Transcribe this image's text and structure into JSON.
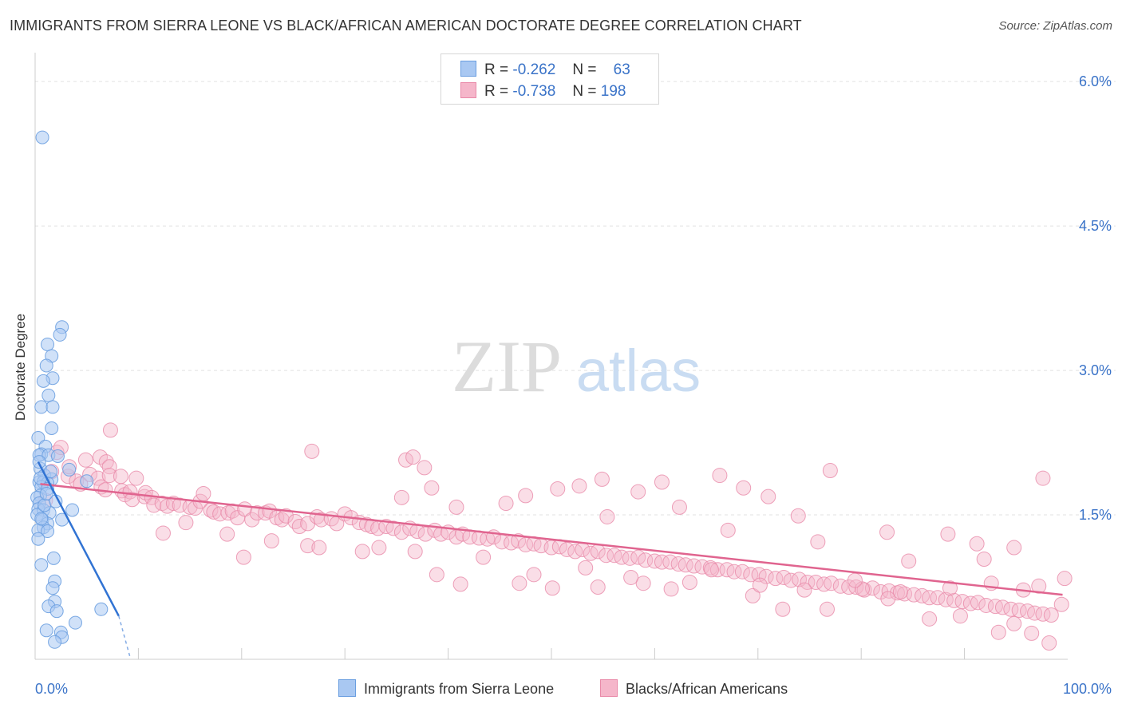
{
  "title": "IMMIGRANTS FROM SIERRA LEONE VS BLACK/AFRICAN AMERICAN DOCTORATE DEGREE CORRELATION CHART",
  "source": "Source: ZipAtlas.com",
  "watermark": {
    "zip": "ZIP",
    "atlas": "atlas"
  },
  "legend_top": {
    "r_label": "R =",
    "n_label": "N =",
    "series1": {
      "r": "-0.262",
      "n": "63"
    },
    "series2": {
      "r": "-0.738",
      "n": "198"
    }
  },
  "colors": {
    "blue_fill": "#a9c8f2",
    "blue_stroke": "#6a9ee0",
    "blue_line": "#3173d3",
    "pink_fill": "#f5b6ca",
    "pink_stroke": "#e98aa9",
    "pink_line": "#e0648f",
    "tick_label": "#3a73c8"
  },
  "chart_data": {
    "type": "scatter",
    "title": "IMMIGRANTS FROM SIERRA LEONE VS BLACK/AFRICAN AMERICAN DOCTORATE DEGREE CORRELATION CHART",
    "xlabel": "",
    "ylabel": "Doctorate Degree",
    "xlim": [
      0,
      100
    ],
    "ylim": [
      0,
      6.2
    ],
    "x_tick_labels": [
      "0.0%",
      "100.0%"
    ],
    "y_ticks": [
      1.5,
      3.0,
      4.5,
      6.0
    ],
    "y_tick_labels": [
      "1.5%",
      "3.0%",
      "4.5%",
      "6.0%"
    ],
    "grid": true,
    "series": [
      {
        "name": "Immigrants from Sierra Leone",
        "trend": {
          "x0": 0.3,
          "y0": 2.05,
          "x1": 8.1,
          "y1": 0.45,
          "dash_to_x": 9.2,
          "dash_to_y": 0.02
        },
        "points": [
          [
            0.7,
            5.42
          ],
          [
            2.6,
            3.45
          ],
          [
            1.2,
            3.27
          ],
          [
            2.4,
            3.37
          ],
          [
            1.6,
            3.15
          ],
          [
            1.1,
            3.05
          ],
          [
            1.7,
            2.92
          ],
          [
            0.8,
            2.89
          ],
          [
            1.3,
            2.74
          ],
          [
            0.6,
            2.62
          ],
          [
            1.7,
            2.62
          ],
          [
            1.6,
            2.4
          ],
          [
            0.3,
            2.3
          ],
          [
            1.0,
            2.21
          ],
          [
            0.6,
            2.13
          ],
          [
            0.4,
            2.12
          ],
          [
            1.3,
            2.12
          ],
          [
            2.2,
            2.11
          ],
          [
            0.5,
            1.98
          ],
          [
            3.3,
            1.97
          ],
          [
            0.9,
            1.91
          ],
          [
            1.6,
            1.87
          ],
          [
            0.4,
            1.84
          ],
          [
            0.8,
            1.84
          ],
          [
            1.2,
            1.83
          ],
          [
            5.0,
            1.85
          ],
          [
            0.6,
            1.79
          ],
          [
            1.2,
            1.77
          ],
          [
            0.5,
            1.7
          ],
          [
            0.2,
            1.68
          ],
          [
            0.4,
            1.62
          ],
          [
            0.3,
            1.56
          ],
          [
            3.6,
            1.55
          ],
          [
            0.8,
            1.55
          ],
          [
            1.4,
            1.52
          ],
          [
            0.2,
            1.5
          ],
          [
            0.7,
            1.45
          ],
          [
            2.6,
            1.45
          ],
          [
            1.2,
            1.41
          ],
          [
            0.8,
            1.37
          ],
          [
            0.3,
            1.34
          ],
          [
            1.2,
            1.33
          ],
          [
            0.3,
            1.25
          ],
          [
            1.8,
            1.05
          ],
          [
            0.6,
            0.98
          ],
          [
            1.9,
            0.81
          ],
          [
            1.7,
            0.74
          ],
          [
            1.9,
            0.6
          ],
          [
            1.3,
            0.55
          ],
          [
            2.1,
            0.5
          ],
          [
            6.4,
            0.52
          ],
          [
            3.9,
            0.38
          ],
          [
            1.1,
            0.3
          ],
          [
            2.5,
            0.28
          ],
          [
            2.6,
            0.23
          ],
          [
            1.9,
            0.18
          ],
          [
            0.5,
            1.88
          ],
          [
            0.9,
            1.6
          ],
          [
            1.5,
            1.95
          ],
          [
            0.4,
            2.05
          ],
          [
            2.0,
            1.64
          ],
          [
            0.6,
            1.46
          ],
          [
            1.1,
            1.72
          ]
        ]
      },
      {
        "name": "Blacks/African Americans",
        "trend": {
          "x0": 0.5,
          "y0": 1.82,
          "x1": 99.5,
          "y1": 0.67
        },
        "points": [
          [
            1.0,
            1.65
          ],
          [
            1.6,
            1.95
          ],
          [
            2.1,
            2.15
          ],
          [
            2.5,
            2.2
          ],
          [
            3.2,
            1.9
          ],
          [
            3.3,
            2.0
          ],
          [
            4.0,
            1.85
          ],
          [
            4.4,
            1.82
          ],
          [
            4.9,
            2.07
          ],
          [
            5.3,
            1.92
          ],
          [
            6.1,
            1.88
          ],
          [
            6.3,
            2.1
          ],
          [
            6.4,
            1.79
          ],
          [
            6.8,
            1.76
          ],
          [
            6.9,
            2.05
          ],
          [
            7.2,
            2.0
          ],
          [
            7.2,
            1.91
          ],
          [
            7.3,
            2.38
          ],
          [
            8.3,
            1.9
          ],
          [
            8.4,
            1.75
          ],
          [
            8.7,
            1.71
          ],
          [
            9.2,
            1.74
          ],
          [
            9.4,
            1.66
          ],
          [
            9.8,
            1.88
          ],
          [
            10.6,
            1.69
          ],
          [
            10.7,
            1.73
          ],
          [
            11.3,
            1.68
          ],
          [
            11.5,
            1.6
          ],
          [
            12.3,
            1.62
          ],
          [
            12.8,
            1.59
          ],
          [
            13.4,
            1.62
          ],
          [
            14.0,
            1.6
          ],
          [
            15.0,
            1.58
          ],
          [
            15.5,
            1.57
          ],
          [
            16.0,
            1.64
          ],
          [
            16.3,
            1.72
          ],
          [
            17.0,
            1.55
          ],
          [
            17.3,
            1.53
          ],
          [
            17.9,
            1.51
          ],
          [
            18.7,
            1.52
          ],
          [
            19.1,
            1.54
          ],
          [
            19.6,
            1.47
          ],
          [
            20.3,
            1.56
          ],
          [
            21.0,
            1.45
          ],
          [
            21.5,
            1.52
          ],
          [
            22.3,
            1.52
          ],
          [
            22.7,
            1.54
          ],
          [
            23.4,
            1.47
          ],
          [
            23.9,
            1.45
          ],
          [
            24.3,
            1.49
          ],
          [
            25.2,
            1.43
          ],
          [
            25.6,
            1.38
          ],
          [
            26.4,
            1.41
          ],
          [
            27.3,
            1.48
          ],
          [
            27.7,
            1.45
          ],
          [
            28.7,
            1.46
          ],
          [
            29.2,
            1.41
          ],
          [
            30.0,
            1.51
          ],
          [
            30.6,
            1.47
          ],
          [
            31.4,
            1.42
          ],
          [
            32.1,
            1.4
          ],
          [
            32.6,
            1.38
          ],
          [
            33.2,
            1.36
          ],
          [
            34.0,
            1.38
          ],
          [
            34.7,
            1.36
          ],
          [
            35.5,
            1.32
          ],
          [
            36.3,
            1.36
          ],
          [
            37.0,
            1.33
          ],
          [
            37.8,
            1.3
          ],
          [
            38.7,
            1.34
          ],
          [
            39.3,
            1.3
          ],
          [
            40.0,
            1.32
          ],
          [
            40.8,
            1.27
          ],
          [
            41.4,
            1.3
          ],
          [
            42.1,
            1.27
          ],
          [
            43.0,
            1.26
          ],
          [
            43.8,
            1.25
          ],
          [
            44.4,
            1.27
          ],
          [
            45.2,
            1.22
          ],
          [
            46.1,
            1.21
          ],
          [
            46.8,
            1.23
          ],
          [
            47.5,
            1.19
          ],
          [
            48.3,
            1.2
          ],
          [
            49.0,
            1.18
          ],
          [
            50.0,
            1.16
          ],
          [
            50.8,
            1.17
          ],
          [
            51.5,
            1.14
          ],
          [
            52.3,
            1.12
          ],
          [
            53.0,
            1.14
          ],
          [
            53.8,
            1.1
          ],
          [
            54.5,
            1.12
          ],
          [
            55.3,
            1.08
          ],
          [
            56.1,
            1.08
          ],
          [
            56.8,
            1.06
          ],
          [
            57.6,
            1.05
          ],
          [
            58.4,
            1.06
          ],
          [
            59.1,
            1.03
          ],
          [
            60.0,
            1.02
          ],
          [
            60.7,
            1.01
          ],
          [
            61.5,
            1.01
          ],
          [
            62.3,
            0.99
          ],
          [
            63.0,
            0.98
          ],
          [
            63.8,
            0.97
          ],
          [
            64.6,
            0.96
          ],
          [
            65.4,
            0.95
          ],
          [
            66.1,
            0.93
          ],
          [
            67.0,
            0.93
          ],
          [
            67.7,
            0.91
          ],
          [
            68.5,
            0.91
          ],
          [
            69.3,
            0.88
          ],
          [
            70.1,
            0.88
          ],
          [
            70.8,
            0.86
          ],
          [
            71.7,
            0.84
          ],
          [
            72.5,
            0.85
          ],
          [
            73.2,
            0.82
          ],
          [
            74.0,
            0.83
          ],
          [
            74.8,
            0.8
          ],
          [
            75.6,
            0.8
          ],
          [
            76.4,
            0.78
          ],
          [
            77.1,
            0.79
          ],
          [
            78.0,
            0.76
          ],
          [
            78.8,
            0.75
          ],
          [
            79.5,
            0.75
          ],
          [
            80.3,
            0.72
          ],
          [
            81.1,
            0.74
          ],
          [
            81.9,
            0.7
          ],
          [
            82.7,
            0.71
          ],
          [
            83.5,
            0.69
          ],
          [
            84.2,
            0.68
          ],
          [
            85.1,
            0.67
          ],
          [
            85.9,
            0.66
          ],
          [
            86.6,
            0.64
          ],
          [
            87.4,
            0.64
          ],
          [
            88.2,
            0.62
          ],
          [
            89.0,
            0.61
          ],
          [
            89.8,
            0.6
          ],
          [
            90.6,
            0.58
          ],
          [
            91.3,
            0.59
          ],
          [
            92.1,
            0.56
          ],
          [
            93.0,
            0.55
          ],
          [
            93.7,
            0.54
          ],
          [
            94.5,
            0.52
          ],
          [
            95.3,
            0.51
          ],
          [
            96.1,
            0.5
          ],
          [
            96.8,
            0.48
          ],
          [
            97.6,
            0.47
          ],
          [
            98.4,
            0.46
          ],
          [
            26.8,
            2.16
          ],
          [
            35.9,
            2.07
          ],
          [
            36.6,
            2.1
          ],
          [
            37.7,
            1.99
          ],
          [
            54.9,
            1.87
          ],
          [
            60.7,
            1.84
          ],
          [
            66.3,
            1.91
          ],
          [
            77.0,
            1.96
          ],
          [
            97.6,
            1.88
          ],
          [
            38.4,
            1.78
          ],
          [
            47.5,
            1.7
          ],
          [
            50.6,
            1.77
          ],
          [
            52.7,
            1.8
          ],
          [
            58.4,
            1.74
          ],
          [
            68.6,
            1.78
          ],
          [
            71.0,
            1.69
          ],
          [
            73.9,
            1.49
          ],
          [
            82.5,
            1.32
          ],
          [
            88.4,
            1.3
          ],
          [
            91.2,
            1.2
          ],
          [
            94.8,
            1.16
          ],
          [
            35.5,
            1.68
          ],
          [
            40.8,
            1.58
          ],
          [
            45.6,
            1.62
          ],
          [
            55.4,
            1.48
          ],
          [
            62.4,
            1.58
          ],
          [
            67.1,
            1.34
          ],
          [
            75.8,
            1.22
          ],
          [
            84.6,
            1.02
          ],
          [
            92.6,
            0.79
          ],
          [
            97.2,
            0.76
          ],
          [
            99.7,
            0.84
          ],
          [
            99.4,
            0.57
          ],
          [
            96.5,
            0.27
          ],
          [
            98.2,
            0.17
          ],
          [
            94.8,
            0.37
          ],
          [
            93.3,
            0.28
          ],
          [
            89.6,
            0.45
          ],
          [
            86.6,
            0.42
          ],
          [
            82.6,
            0.63
          ],
          [
            80.1,
            0.73
          ],
          [
            76.7,
            0.52
          ],
          [
            72.4,
            0.52
          ],
          [
            69.5,
            0.66
          ],
          [
            63.4,
            0.8
          ],
          [
            58.9,
            0.79
          ],
          [
            54.5,
            0.75
          ],
          [
            50.1,
            0.74
          ],
          [
            46.9,
            0.79
          ],
          [
            41.2,
            0.78
          ],
          [
            38.9,
            0.88
          ],
          [
            31.7,
            1.12
          ],
          [
            26.4,
            1.18
          ],
          [
            22.9,
            1.23
          ],
          [
            18.6,
            1.3
          ],
          [
            14.6,
            1.42
          ],
          [
            12.4,
            1.31
          ],
          [
            20.2,
            1.06
          ],
          [
            27.5,
            1.16
          ],
          [
            33.3,
            1.16
          ],
          [
            36.8,
            1.12
          ],
          [
            43.4,
            1.06
          ],
          [
            48.3,
            0.88
          ],
          [
            53.3,
            0.95
          ],
          [
            57.7,
            0.85
          ],
          [
            61.6,
            0.73
          ],
          [
            65.5,
            0.93
          ],
          [
            70.2,
            0.77
          ],
          [
            74.5,
            0.72
          ],
          [
            79.4,
            0.82
          ],
          [
            83.8,
            0.7
          ],
          [
            88.6,
            0.74
          ],
          [
            91.9,
            1.04
          ],
          [
            95.7,
            0.72
          ]
        ]
      }
    ]
  },
  "bottom_legend": {
    "series1": "Immigrants from Sierra Leone",
    "series2": "Blacks/African Americans"
  }
}
